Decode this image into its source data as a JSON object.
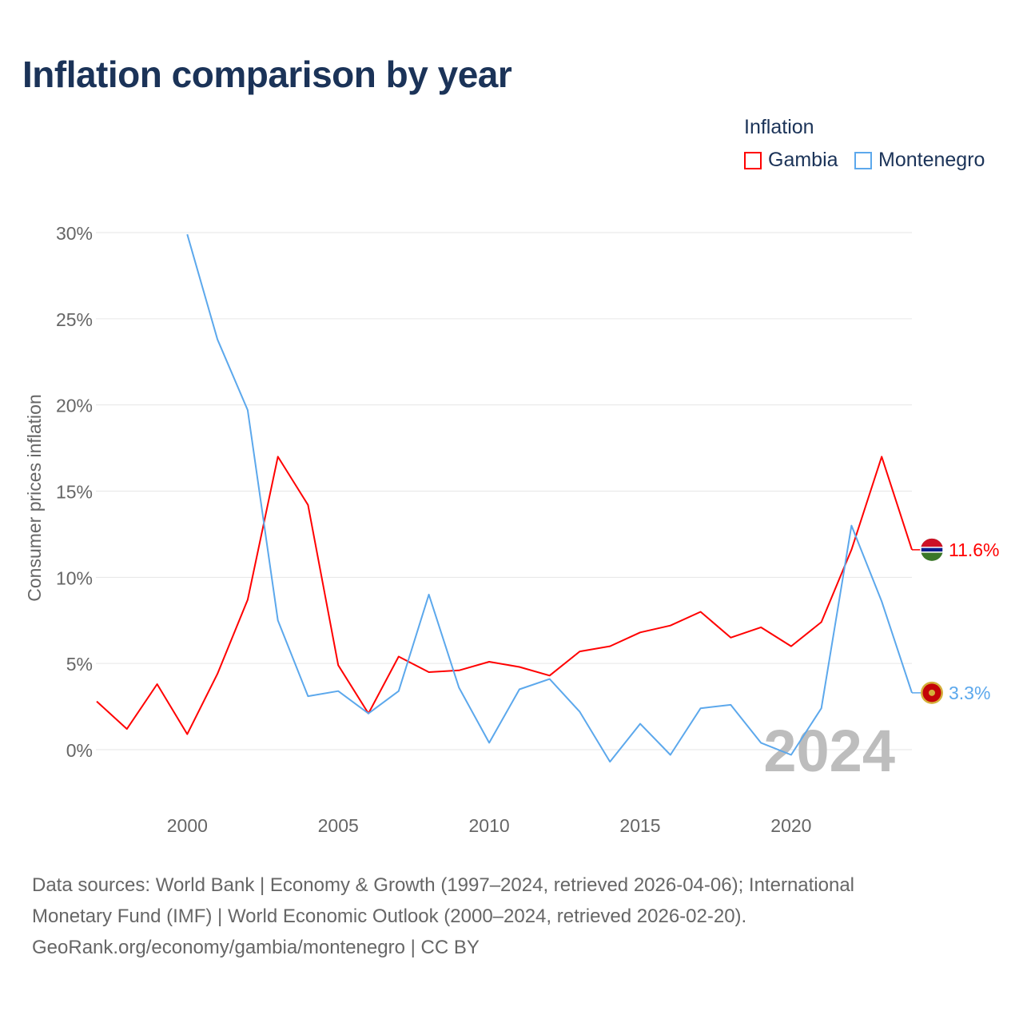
{
  "title": "Inflation comparison by year",
  "legend": {
    "title": "Inflation",
    "items": [
      {
        "name": "Gambia",
        "color": "#ff0000"
      },
      {
        "name": "Montenegro",
        "color": "#5ca8ec"
      }
    ]
  },
  "footer": {
    "line1": "Data sources: World Bank | Economy & Growth (1997–2024, retrieved 2026-04-06); International",
    "line2": "Monetary Fund (IMF) | World Economic Outlook (2000–2024, retrieved 2026-02-20).",
    "line3": "GeoRank.org/economy/gambia/montenegro | CC BY"
  },
  "chart_data": {
    "type": "line",
    "title": "Inflation comparison by year",
    "xlabel": "",
    "ylabel": "Consumer prices inflation",
    "xlim": [
      1997,
      2024
    ],
    "ylim": [
      -3,
      30
    ],
    "yticks": [
      0,
      5,
      10,
      15,
      20,
      25,
      30
    ],
    "ytick_labels": [
      "0%",
      "5%",
      "10%",
      "15%",
      "20%",
      "25%",
      "30%"
    ],
    "xticks": [
      2000,
      2005,
      2010,
      2015,
      2020
    ],
    "xtick_labels": [
      "2000",
      "2005",
      "2010",
      "2015",
      "2020"
    ],
    "grid": true,
    "watermark_year": "2024",
    "series": [
      {
        "name": "Gambia",
        "color": "#ff0000",
        "end_label": "11.6%",
        "x": [
          1997,
          1998,
          1999,
          2000,
          2001,
          2002,
          2003,
          2004,
          2005,
          2006,
          2007,
          2008,
          2009,
          2010,
          2011,
          2012,
          2013,
          2014,
          2015,
          2016,
          2017,
          2018,
          2019,
          2020,
          2021,
          2022,
          2023,
          2024
        ],
        "values": [
          2.8,
          1.2,
          3.8,
          0.9,
          4.4,
          8.7,
          17.0,
          14.2,
          4.9,
          2.1,
          5.4,
          4.5,
          4.6,
          5.1,
          4.8,
          4.3,
          5.7,
          6.0,
          6.8,
          7.2,
          8.0,
          6.5,
          7.1,
          6.0,
          7.4,
          11.6,
          17.0,
          11.6
        ]
      },
      {
        "name": "Montenegro",
        "color": "#5ca8ec",
        "end_label": "3.3%",
        "x": [
          2000,
          2001,
          2002,
          2003,
          2004,
          2005,
          2006,
          2007,
          2008,
          2009,
          2010,
          2011,
          2012,
          2013,
          2014,
          2015,
          2016,
          2017,
          2018,
          2019,
          2020,
          2021,
          2022,
          2023,
          2024
        ],
        "values": [
          29.9,
          23.8,
          19.7,
          7.5,
          3.1,
          3.4,
          2.1,
          3.4,
          9.0,
          3.6,
          0.4,
          3.5,
          4.1,
          2.2,
          -0.7,
          1.5,
          -0.3,
          2.4,
          2.6,
          0.4,
          -0.3,
          2.4,
          13.0,
          8.6,
          3.3
        ]
      }
    ]
  }
}
